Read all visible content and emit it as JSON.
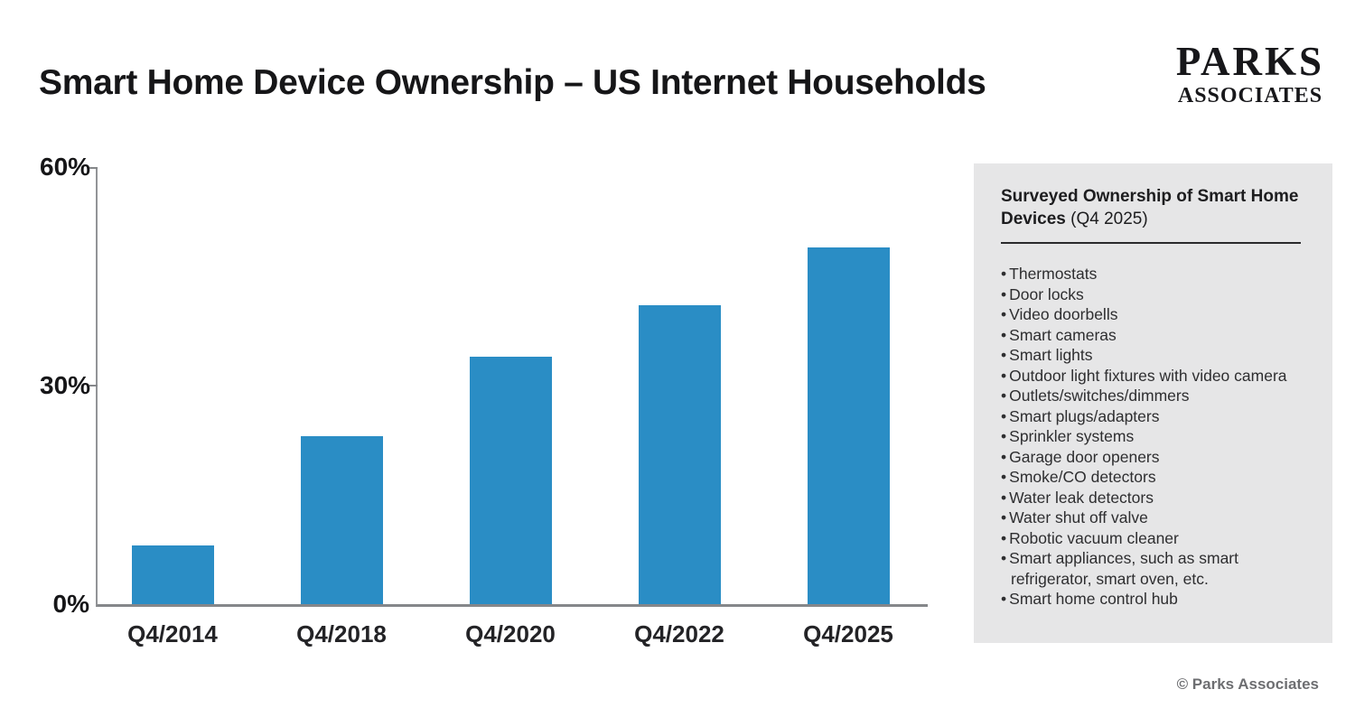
{
  "header": {
    "title": "Smart Home Device Ownership – US Internet Households",
    "logo": {
      "line1": "PARKS",
      "line2": "ASSOCIATES"
    }
  },
  "chart_data": {
    "type": "bar",
    "title": "Smart Home Device Ownership – US Internet Households",
    "categories": [
      "Q4/2014",
      "Q4/2018",
      "Q4/2020",
      "Q4/2022",
      "Q4/2025"
    ],
    "values": [
      8,
      23,
      34,
      41,
      49
    ],
    "unit": "%",
    "xlabel": "",
    "ylabel": "",
    "ylim": [
      0,
      60
    ],
    "yticks": [
      "0%",
      "30%",
      "60%"
    ],
    "grid": false,
    "legend": false,
    "bar_color": "#2a8dc5",
    "axis_color": "#85878a"
  },
  "sidebar": {
    "title_bold": "Surveyed Ownership of Smart Home Devices",
    "title_normal": " (Q4 2025)",
    "bullet_icon": "•",
    "items": [
      "Thermostats",
      "Door locks",
      "Video doorbells",
      "Smart cameras",
      "Smart lights",
      "Outdoor light fixtures with video camera",
      "Outlets/switches/dimmers",
      "Smart plugs/adapters",
      "Sprinkler systems",
      "Garage door openers",
      "Smoke/CO detectors",
      "Water leak detectors",
      "Water shut off valve",
      "Robotic vacuum cleaner",
      "Smart appliances, such as smart refrigerator, smart oven, etc.",
      "Smart home control hub"
    ]
  },
  "footer": {
    "copyright": "© Parks Associates"
  }
}
